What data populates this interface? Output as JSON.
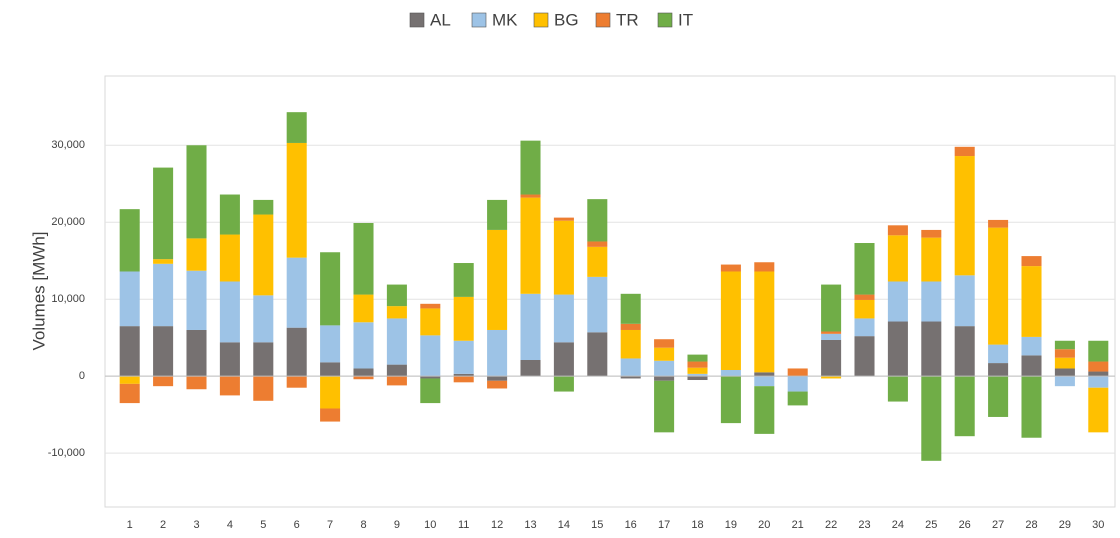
{
  "chart_data": {
    "type": "stacked-bar",
    "y_label": "Volumes [MWh]",
    "categories": [
      "1",
      "2",
      "3",
      "4",
      "5",
      "6",
      "7",
      "8",
      "9",
      "10",
      "11",
      "12",
      "13",
      "14",
      "15",
      "16",
      "17",
      "18",
      "19",
      "20",
      "21",
      "22",
      "23",
      "24",
      "25",
      "26",
      "27",
      "28",
      "29",
      "30"
    ],
    "series": [
      {
        "name": "AL",
        "color": "#767171",
        "values": [
          6500,
          6500,
          6000,
          4400,
          4400,
          6300,
          1800,
          1000,
          1500,
          -300,
          300,
          -600,
          2100,
          4400,
          5700,
          -300,
          -600,
          -500,
          0,
          500,
          0,
          4700,
          5200,
          7100,
          7100,
          6500,
          1700,
          2700,
          1000,
          600
        ]
      },
      {
        "name": "MK",
        "color": "#9dc3e6",
        "values": [
          7100,
          8100,
          7700,
          7900,
          6100,
          9100,
          4800,
          6000,
          6000,
          5300,
          4300,
          6000,
          8600,
          6200,
          7200,
          2300,
          2000,
          300,
          800,
          -1300,
          -2000,
          800,
          2300,
          5200,
          5200,
          6600,
          2400,
          2400,
          -1300,
          -1500
        ]
      },
      {
        "name": "BG",
        "color": "#ffc000",
        "values": [
          -1000,
          600,
          4200,
          6100,
          10500,
          14900,
          -4200,
          3600,
          1600,
          3500,
          5700,
          13000,
          12500,
          9600,
          3900,
          3700,
          1700,
          800,
          12800,
          13100,
          0,
          -300,
          2400,
          6000,
          5700,
          15500,
          15200,
          9200,
          1400,
          -5800
        ]
      },
      {
        "name": "TR",
        "color": "#ed7d31",
        "values": [
          -2500,
          -1300,
          -1700,
          -2500,
          -3200,
          -1500,
          -1700,
          -400,
          -1200,
          600,
          -800,
          -1000,
          400,
          400,
          700,
          800,
          1100,
          800,
          900,
          1200,
          1000,
          300,
          700,
          1300,
          1000,
          1200,
          1000,
          1300,
          1100,
          1300
        ]
      },
      {
        "name": "IT",
        "color": "#70ad47",
        "values": [
          8100,
          11900,
          12100,
          5200,
          1900,
          4000,
          9500,
          9300,
          2800,
          -3200,
          4400,
          3900,
          7000,
          -2000,
          5500,
          3900,
          -6700,
          900,
          -6100,
          -6200,
          -1800,
          6100,
          6700,
          -3300,
          -11000,
          -7800,
          -5300,
          -8000,
          1100,
          2700
        ]
      }
    ],
    "ylim": [
      -17000,
      39000
    ],
    "yticks": [
      {
        "value": -10000,
        "label": "-10,000"
      },
      0,
      {
        "value": 10000,
        "label": "10,000"
      },
      {
        "value": 20000,
        "label": "20,000"
      },
      {
        "value": 30000,
        "label": "30,000"
      }
    ],
    "grid": true
  }
}
